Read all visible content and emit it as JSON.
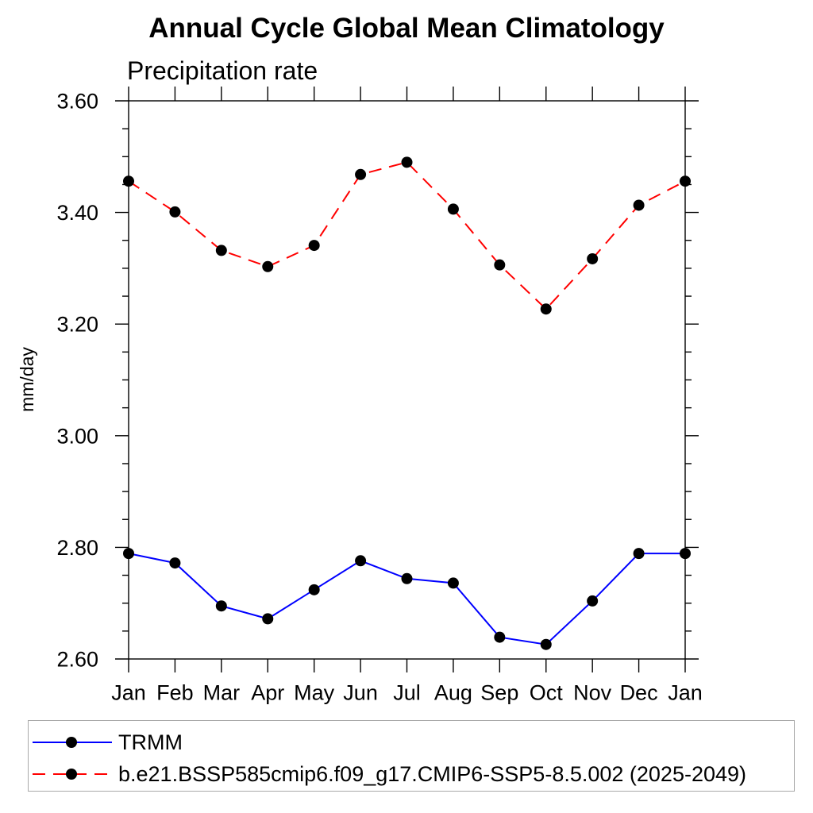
{
  "page": {
    "background": "#ffffff"
  },
  "chart_data": {
    "type": "line",
    "title": "Annual Cycle Global Mean Climatology",
    "subtitle": "Precipitation rate",
    "ylabel": "mm/day",
    "xlabel": "",
    "categories": [
      "Jan",
      "Feb",
      "Mar",
      "Apr",
      "May",
      "Jun",
      "Jul",
      "Aug",
      "Sep",
      "Oct",
      "Nov",
      "Dec",
      "Jan"
    ],
    "ylim": [
      2.6,
      3.6
    ],
    "ytick_major": 0.2,
    "ytick_minor": 0.05,
    "ytick_labels": [
      "2.60",
      "2.80",
      "3.00",
      "3.20",
      "3.40",
      "3.60"
    ],
    "grid": false,
    "axis_color": "#000000",
    "marker": "filled-circle",
    "marker_color": "#000000",
    "legend_position": "bottom-left-box",
    "legend_border_color": "#a9a9a9",
    "series": [
      {
        "name": "TRMM",
        "color": "#0000ff",
        "line_style": "solid",
        "values": [
          2.789,
          2.772,
          2.695,
          2.672,
          2.724,
          2.776,
          2.744,
          2.736,
          2.639,
          2.626,
          2.704,
          2.789,
          2.789
        ]
      },
      {
        "name": "b.e21.BSSP585cmip6.f09_g17.CMIP6-SSP5-8.5.002 (2025-2049)",
        "color": "#ff0000",
        "line_style": "dashed",
        "values": [
          3.456,
          3.401,
          3.332,
          3.303,
          3.341,
          3.468,
          3.49,
          3.406,
          3.306,
          3.227,
          3.317,
          3.413,
          3.456
        ]
      }
    ]
  }
}
